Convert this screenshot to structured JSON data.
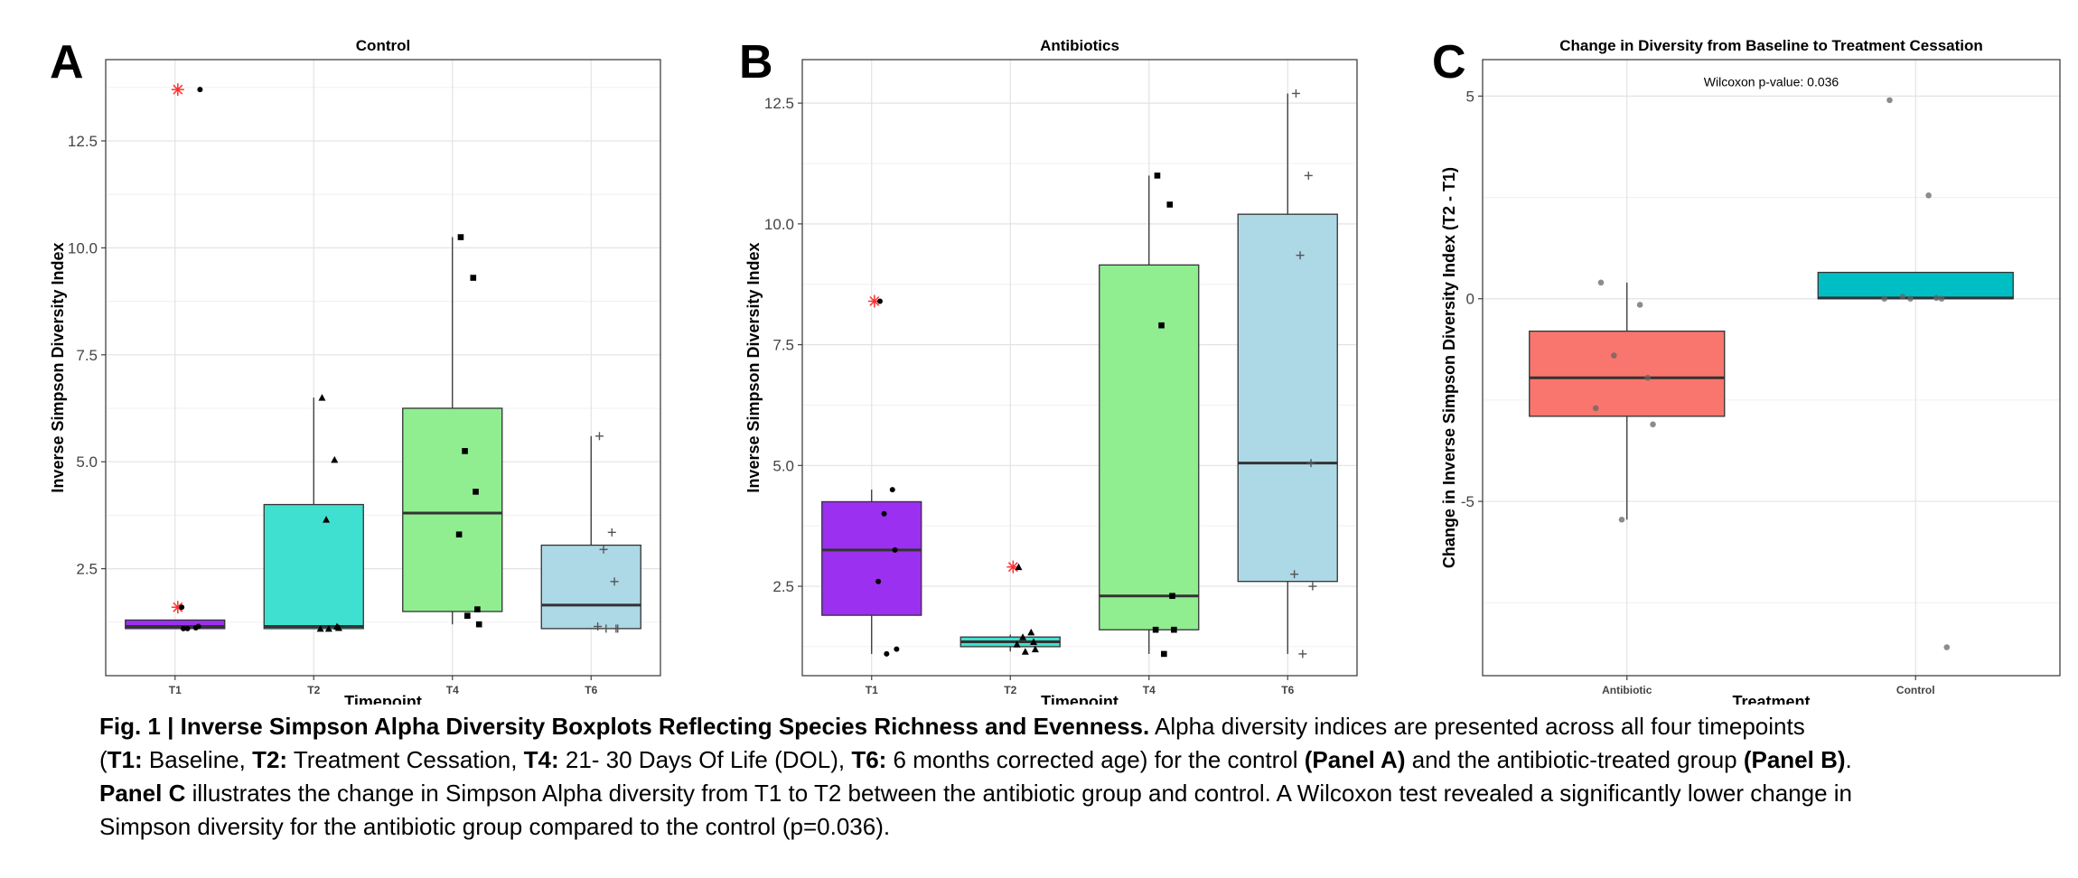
{
  "chart_data": [
    {
      "type": "box",
      "panel_label": "A",
      "title": "Control",
      "xlabel": "Timepoint",
      "ylabel": "Inverse Simpson Diversity Index",
      "ylim": [
        0,
        14.4
      ],
      "yticks": [
        2.5,
        5.0,
        7.5,
        10.0,
        12.5
      ],
      "ytick_labels": [
        "2.5",
        "5.0",
        "7.5",
        "10.0",
        "12.5"
      ],
      "grid": true,
      "categories": [
        "T1",
        "T2",
        "T4",
        "T6"
      ],
      "fill_colors": [
        "#9b30f0",
        "#40e0d0",
        "#90ee90",
        "#add8e6"
      ],
      "point_markers": [
        "circle",
        "triangle",
        "square",
        "plus"
      ],
      "outlier_color": "#ff3030",
      "boxes": [
        {
          "q1": 1.1,
          "median": 1.15,
          "q3": 1.3,
          "whisker_low": 1.1,
          "whisker_high": 1.3,
          "outliers": [
            1.6,
            13.7
          ]
        },
        {
          "q1": 1.1,
          "median": 1.15,
          "q3": 4.0,
          "whisker_low": 1.1,
          "whisker_high": 6.5,
          "outliers": []
        },
        {
          "q1": 1.5,
          "median": 3.8,
          "q3": 6.25,
          "whisker_low": 1.2,
          "whisker_high": 10.25,
          "outliers": []
        },
        {
          "q1": 1.1,
          "median": 1.65,
          "q3": 3.05,
          "whisker_low": 1.1,
          "whisker_high": 5.6,
          "outliers": []
        }
      ],
      "points": [
        [
          1.1,
          1.12,
          1.1,
          1.15,
          1.6,
          13.7
        ],
        [
          6.5,
          5.05,
          3.65,
          1.15,
          1.1,
          1.12,
          1.1
        ],
        [
          10.25,
          9.3,
          5.25,
          4.3,
          3.3,
          1.55,
          1.4,
          1.2
        ],
        [
          5.6,
          3.35,
          2.95,
          2.2,
          1.15,
          1.1,
          1.1,
          1.1
        ]
      ]
    },
    {
      "type": "box",
      "panel_label": "B",
      "title": "Antibiotics",
      "xlabel": "Timepoint",
      "ylabel": "Inverse Simpson Diversity Index",
      "ylim": [
        0.65,
        13.4
      ],
      "yticks": [
        2.5,
        5.0,
        7.5,
        10.0,
        12.5
      ],
      "ytick_labels": [
        "2.5",
        "5.0",
        "7.5",
        "10.0",
        "12.5"
      ],
      "grid": true,
      "categories": [
        "T1",
        "T2",
        "T4",
        "T6"
      ],
      "fill_colors": [
        "#9b30f0",
        "#40e0d0",
        "#90ee90",
        "#add8e6"
      ],
      "point_markers": [
        "circle",
        "triangle",
        "square",
        "plus"
      ],
      "outlier_color": "#ff3030",
      "boxes": [
        {
          "q1": 1.9,
          "median": 3.25,
          "q3": 4.25,
          "whisker_low": 1.1,
          "whisker_high": 4.5,
          "outliers": [
            8.4
          ]
        },
        {
          "q1": 1.25,
          "median": 1.35,
          "q3": 1.45,
          "whisker_low": 1.15,
          "whisker_high": 1.5,
          "outliers": [
            2.9
          ]
        },
        {
          "q1": 1.6,
          "median": 2.3,
          "q3": 9.15,
          "whisker_low": 1.1,
          "whisker_high": 11.0,
          "outliers": []
        },
        {
          "q1": 2.6,
          "median": 5.05,
          "q3": 10.2,
          "whisker_low": 1.1,
          "whisker_high": 12.7,
          "outliers": []
        }
      ],
      "points": [
        [
          8.4,
          4.5,
          4.0,
          3.25,
          2.6,
          1.2,
          1.1
        ],
        [
          2.9,
          1.55,
          1.45,
          1.35,
          1.3,
          1.2,
          1.15
        ],
        [
          11.0,
          10.4,
          7.9,
          2.3,
          1.6,
          1.6,
          1.1
        ],
        [
          12.7,
          11.0,
          9.35,
          5.05,
          2.75,
          2.5,
          1.1
        ]
      ]
    },
    {
      "type": "box",
      "panel_label": "C",
      "title": "Change in Diversity from Baseline to Treatment Cessation",
      "xlabel": "Treatment",
      "ylabel": "Change in Inverse Simpson Diversity Index (T2 - T1)",
      "ylim": [
        -9.3,
        5.9
      ],
      "yticks": [
        -5,
        0,
        5
      ],
      "ytick_labels": [
        "-5",
        "0",
        "5"
      ],
      "grid": true,
      "categories": [
        "Antibiotic",
        "Control"
      ],
      "fill_colors": [
        "#f8766d",
        "#00bfc4"
      ],
      "annotation": "Wilcoxon p-value: 0.036",
      "annotation_at": {
        "category_position": 1.0,
        "y": 5.35
      },
      "boxes": [
        {
          "q1": -2.9,
          "median": -1.95,
          "q3": -0.8,
          "whisker_low": -5.45,
          "whisker_high": 0.4,
          "outliers": []
        },
        {
          "q1": 0.0,
          "median": 0.02,
          "q3": 0.65,
          "whisker_low": 0.0,
          "whisker_high": 0.65,
          "outliers": [
            4.9,
            2.55,
            -8.6
          ]
        }
      ],
      "points": [
        [
          0.4,
          -0.15,
          -1.4,
          -1.95,
          -2.7,
          -3.1,
          -5.45
        ],
        [
          4.9,
          2.55,
          0.05,
          0.02,
          0.0,
          0.0,
          0.0,
          -8.6
        ]
      ]
    }
  ],
  "caption": {
    "lines": [
      [
        {
          "t": "Fig. 1 | Inverse Simpson Alpha Diversity Boxplots Reflecting Species Richness and Evenness.",
          "b": true
        },
        {
          "t": " Alpha diversity indices are presented across all four timepoints",
          "b": false
        }
      ],
      [
        {
          "t": "(",
          "b": false
        },
        {
          "t": "T1:",
          "b": true
        },
        {
          "t": " Baseline, ",
          "b": false
        },
        {
          "t": "T2:",
          "b": true
        },
        {
          "t": " Treatment Cessation, ",
          "b": false
        },
        {
          "t": "T4:",
          "b": true
        },
        {
          "t": " 21- 30 Days Of Life (DOL), ",
          "b": false
        },
        {
          "t": "T6:",
          "b": true
        },
        {
          "t": " 6 months corrected age) for the control ",
          "b": false
        },
        {
          "t": "(Panel A)",
          "b": true
        },
        {
          "t": " and the antibiotic-treated group ",
          "b": false
        },
        {
          "t": "(Panel B)",
          "b": true
        },
        {
          "t": ".",
          "b": false
        }
      ],
      [
        {
          "t": "Panel C",
          "b": true
        },
        {
          "t": " illustrates the change in Simpson Alpha diversity from T1 to T2 between the antibiotic group and control. A Wilcoxon test revealed a significantly lower change in",
          "b": false
        }
      ],
      [
        {
          "t": "Simpson diversity for the antibiotic group compared to the control (p=0.036).",
          "b": false
        }
      ]
    ]
  }
}
